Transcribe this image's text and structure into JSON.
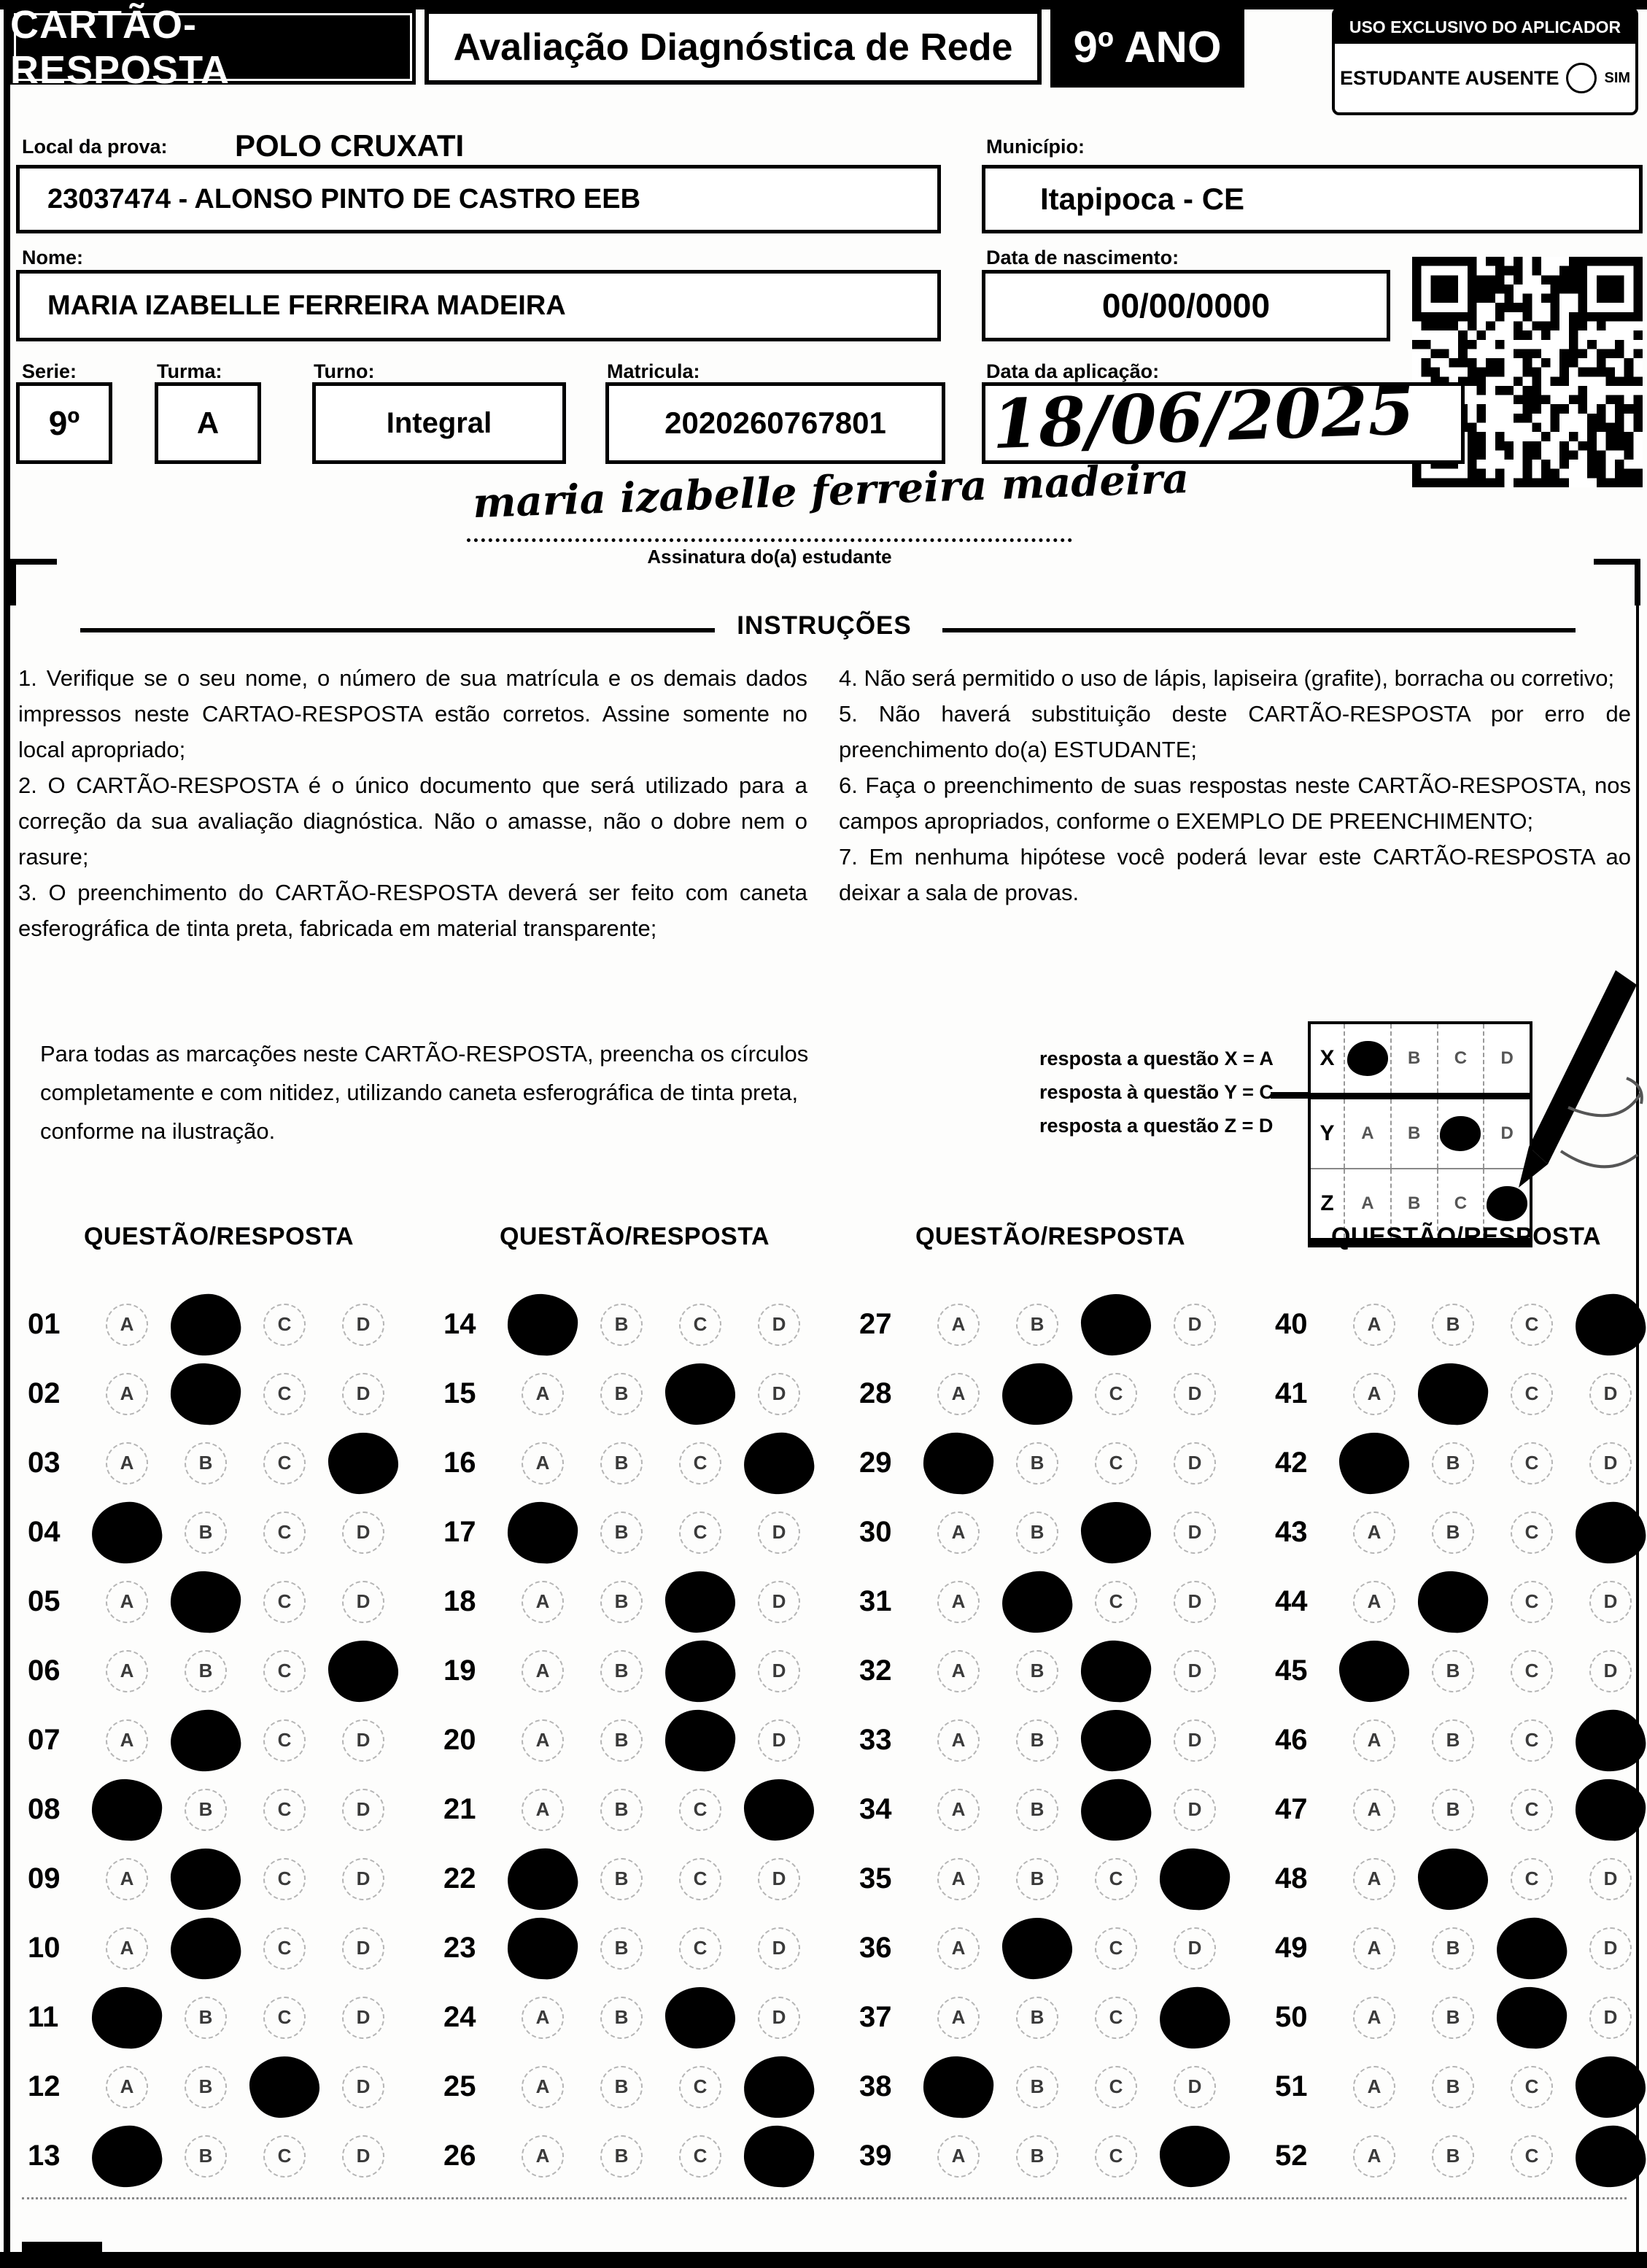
{
  "header": {
    "title": "CARTÃO-RESPOSTA",
    "subtitle": "Avaliação Diagnóstica de Rede",
    "grade": "9º ANO",
    "applicator": {
      "box_title": "USO EXCLUSIVO DO APLICADOR",
      "absent_label": "ESTUDANTE AUSENTE",
      "absent_option": "SIM"
    }
  },
  "fields": {
    "local_label": "Local da prova:",
    "local_value": "POLO CRUXATI",
    "school_value": "23037474 - ALONSO PINTO DE CASTRO EEB",
    "municipio_label": "Município:",
    "municipio_value": "Itapipoca - CE",
    "nome_label": "Nome:",
    "nome_value": "MARIA IZABELLE FERREIRA MADEIRA",
    "nascimento_label": "Data de nascimento:",
    "nascimento_value": "00/00/0000",
    "serie_label": "Serie:",
    "serie_value": "9º",
    "turma_label": "Turma:",
    "turma_value": "A",
    "turno_label": "Turno:",
    "turno_value": "Integral",
    "matricula_label": "Matricula:",
    "matricula_value": "2020260767801",
    "aplicacao_label": "Data da aplicação:",
    "aplicacao_value": "18/06/2025"
  },
  "signature": {
    "value": "maria izabelle ferreira madeira",
    "label": "Assinatura do(a) estudante"
  },
  "instructions": {
    "title": "INSTRUÇÕES",
    "left": [
      "1. Verifique se o seu nome, o número de sua matrícula e os demais dados impressos neste CARTAO-RESPOSTA estão corretos. Assine somente no local apropriado;",
      "2. O CARTÃO-RESPOSTA é o único documento que será utilizado para a correção da sua avaliação diagnóstica. Não o amasse, não o dobre nem o rasure;",
      "3. O preenchimento do CARTÃO-RESPOSTA deverá ser feito com caneta esferográfica de tinta preta, fabricada em material transparente;"
    ],
    "right": [
      "4. Não será permitido o uso de lápis, lapiseira (grafite), borracha ou corretivo;",
      "5. Não haverá substituição deste CARTÃO-RESPOSTA por erro de preenchimento do(a) ESTUDANTE;",
      "6. Faça o preenchimento de suas respostas neste CARTÃO-RESPOSTA, nos campos apropriados, conforme o EXEMPLO DE PREENCHIMENTO;",
      "7. Em nenhuma hipótese você poderá levar este CARTÃO-RESPOSTA ao deixar a sala de provas."
    ]
  },
  "example": {
    "text": "Para todas as marcações neste CARTÃO-RESPOSTA, preencha os círculos completamente e com nitidez, utilizando caneta esferográfica de tinta preta, conforme na ilustração.",
    "legend": [
      "resposta a questão X = A",
      "resposta à questão Y = C",
      "resposta a questão Z = D"
    ],
    "options": [
      "A",
      "B",
      "C",
      "D"
    ],
    "rows": [
      {
        "label": "X",
        "marked": "A"
      },
      {
        "label": "Y",
        "marked": "C"
      },
      {
        "label": "Z",
        "marked": "D"
      }
    ]
  },
  "answer_grid": {
    "column_header": "QUESTÃO/RESPOSTA",
    "options": [
      "A",
      "B",
      "C",
      "D"
    ],
    "columns": [
      {
        "questions": [
          {
            "number": "01",
            "marked": "B"
          },
          {
            "number": "02",
            "marked": "B"
          },
          {
            "number": "03",
            "marked": "D"
          },
          {
            "number": "04",
            "marked": "A"
          },
          {
            "number": "05",
            "marked": "B"
          },
          {
            "number": "06",
            "marked": "D"
          },
          {
            "number": "07",
            "marked": "B"
          },
          {
            "number": "08",
            "marked": "A"
          },
          {
            "number": "09",
            "marked": "B"
          },
          {
            "number": "10",
            "marked": "B"
          },
          {
            "number": "11",
            "marked": "A"
          },
          {
            "number": "12",
            "marked": "C"
          },
          {
            "number": "13",
            "marked": "A"
          }
        ]
      },
      {
        "questions": [
          {
            "number": "14",
            "marked": "A"
          },
          {
            "number": "15",
            "marked": "C"
          },
          {
            "number": "16",
            "marked": "D"
          },
          {
            "number": "17",
            "marked": "A"
          },
          {
            "number": "18",
            "marked": "C"
          },
          {
            "number": "19",
            "marked": "C"
          },
          {
            "number": "20",
            "marked": "C"
          },
          {
            "number": "21",
            "marked": "D"
          },
          {
            "number": "22",
            "marked": "A"
          },
          {
            "number": "23",
            "marked": "A"
          },
          {
            "number": "24",
            "marked": "C"
          },
          {
            "number": "25",
            "marked": "D"
          },
          {
            "number": "26",
            "marked": "D"
          }
        ]
      },
      {
        "questions": [
          {
            "number": "27",
            "marked": "C"
          },
          {
            "number": "28",
            "marked": "B"
          },
          {
            "number": "29",
            "marked": "A"
          },
          {
            "number": "30",
            "marked": "C"
          },
          {
            "number": "31",
            "marked": "B"
          },
          {
            "number": "32",
            "marked": "C"
          },
          {
            "number": "33",
            "marked": "C"
          },
          {
            "number": "34",
            "marked": "C"
          },
          {
            "number": "35",
            "marked": "D"
          },
          {
            "number": "36",
            "marked": "B"
          },
          {
            "number": "37",
            "marked": "D"
          },
          {
            "number": "38",
            "marked": "A"
          },
          {
            "number": "39",
            "marked": "D"
          }
        ]
      },
      {
        "questions": [
          {
            "number": "40",
            "marked": "D"
          },
          {
            "number": "41",
            "marked": "B"
          },
          {
            "number": "42",
            "marked": "A"
          },
          {
            "number": "43",
            "marked": "D"
          },
          {
            "number": "44",
            "marked": "B"
          },
          {
            "number": "45",
            "marked": "A"
          },
          {
            "number": "46",
            "marked": "D"
          },
          {
            "number": "47",
            "marked": "D"
          },
          {
            "number": "48",
            "marked": "B"
          },
          {
            "number": "49",
            "marked": "C"
          },
          {
            "number": "50",
            "marked": "C"
          },
          {
            "number": "51",
            "marked": "D"
          },
          {
            "number": "52",
            "marked": "D"
          }
        ]
      }
    ]
  }
}
